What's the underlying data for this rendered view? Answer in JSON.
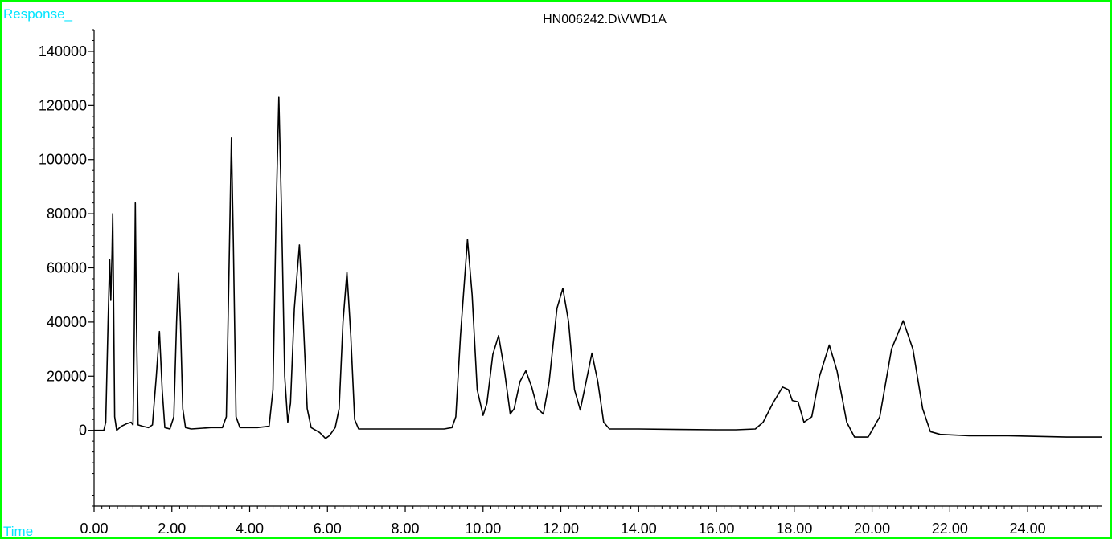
{
  "chart_data": {
    "type": "line",
    "title": "HN006242.D\\VWD1A",
    "xlabel": "Time",
    "ylabel": "Response_",
    "xlim": [
      0,
      25.9
    ],
    "ylim": [
      -28000,
      148000
    ],
    "x_ticks": [
      0,
      2,
      4,
      6,
      8,
      10,
      12,
      14,
      16,
      18,
      20,
      22,
      24
    ],
    "x_tick_labels": [
      "0.00",
      "2.00",
      "4.00",
      "6.00",
      "8.00",
      "10.00",
      "12.00",
      "14.00",
      "16.00",
      "18.00",
      "20.00",
      "22.00",
      "24.00"
    ],
    "y_ticks": [
      0,
      20000,
      40000,
      60000,
      80000,
      100000,
      120000,
      140000
    ],
    "y_tick_labels": [
      "0",
      "20000",
      "40000",
      "60000",
      "80000",
      "100000",
      "120000",
      "140000"
    ],
    "grid": false,
    "colors": {
      "trace": "#000000",
      "frame": "#00ff00",
      "axis_label": "#00e5ff"
    },
    "series": [
      {
        "points": [
          [
            0.0,
            0
          ],
          [
            0.25,
            0
          ],
          [
            0.3,
            3000
          ],
          [
            0.36,
            40000
          ],
          [
            0.4,
            63000
          ],
          [
            0.43,
            48000
          ],
          [
            0.46,
            65000
          ],
          [
            0.48,
            80000
          ],
          [
            0.5,
            50000
          ],
          [
            0.53,
            5000
          ],
          [
            0.58,
            0
          ],
          [
            0.7,
            1500
          ],
          [
            0.85,
            2500
          ],
          [
            0.95,
            3000
          ],
          [
            1.0,
            2000
          ],
          [
            1.03,
            30000
          ],
          [
            1.06,
            84000
          ],
          [
            1.09,
            40000
          ],
          [
            1.13,
            2000
          ],
          [
            1.25,
            1500
          ],
          [
            1.4,
            1000
          ],
          [
            1.5,
            2000
          ],
          [
            1.6,
            20000
          ],
          [
            1.68,
            36500
          ],
          [
            1.75,
            15000
          ],
          [
            1.82,
            1000
          ],
          [
            1.95,
            500
          ],
          [
            2.05,
            5000
          ],
          [
            2.12,
            40000
          ],
          [
            2.17,
            58000
          ],
          [
            2.22,
            40000
          ],
          [
            2.28,
            8000
          ],
          [
            2.35,
            1000
          ],
          [
            2.5,
            500
          ],
          [
            2.8,
            800
          ],
          [
            3.0,
            1000
          ],
          [
            3.3,
            1000
          ],
          [
            3.4,
            5000
          ],
          [
            3.47,
            60000
          ],
          [
            3.53,
            108000
          ],
          [
            3.58,
            70000
          ],
          [
            3.65,
            5000
          ],
          [
            3.75,
            1000
          ],
          [
            4.2,
            1000
          ],
          [
            4.5,
            1500
          ],
          [
            4.6,
            15000
          ],
          [
            4.68,
            80000
          ],
          [
            4.75,
            123000
          ],
          [
            4.82,
            80000
          ],
          [
            4.9,
            20000
          ],
          [
            4.98,
            3000
          ],
          [
            5.05,
            10000
          ],
          [
            5.15,
            45000
          ],
          [
            5.28,
            68500
          ],
          [
            5.38,
            40000
          ],
          [
            5.48,
            8000
          ],
          [
            5.58,
            1000
          ],
          [
            5.8,
            -800
          ],
          [
            5.95,
            -3000
          ],
          [
            6.05,
            -2000
          ],
          [
            6.2,
            1000
          ],
          [
            6.3,
            8000
          ],
          [
            6.4,
            40000
          ],
          [
            6.5,
            58500
          ],
          [
            6.6,
            35000
          ],
          [
            6.7,
            4000
          ],
          [
            6.8,
            500
          ],
          [
            8.0,
            500
          ],
          [
            9.0,
            500
          ],
          [
            9.2,
            1000
          ],
          [
            9.3,
            5000
          ],
          [
            9.42,
            35000
          ],
          [
            9.6,
            70500
          ],
          [
            9.72,
            50000
          ],
          [
            9.85,
            15000
          ],
          [
            10.0,
            5500
          ],
          [
            10.1,
            10000
          ],
          [
            10.25,
            28000
          ],
          [
            10.4,
            35000
          ],
          [
            10.55,
            22000
          ],
          [
            10.7,
            6000
          ],
          [
            10.8,
            8000
          ],
          [
            10.95,
            18000
          ],
          [
            11.1,
            22000
          ],
          [
            11.25,
            16000
          ],
          [
            11.4,
            8000
          ],
          [
            11.55,
            6000
          ],
          [
            11.7,
            18000
          ],
          [
            11.9,
            45000
          ],
          [
            12.05,
            52500
          ],
          [
            12.2,
            40000
          ],
          [
            12.35,
            15000
          ],
          [
            12.5,
            7500
          ],
          [
            12.65,
            18000
          ],
          [
            12.8,
            28500
          ],
          [
            12.95,
            18000
          ],
          [
            13.1,
            3000
          ],
          [
            13.25,
            500
          ],
          [
            14.0,
            500
          ],
          [
            15.0,
            300
          ],
          [
            16.0,
            200
          ],
          [
            16.5,
            200
          ],
          [
            17.0,
            500
          ],
          [
            17.2,
            3000
          ],
          [
            17.45,
            10000
          ],
          [
            17.7,
            16000
          ],
          [
            17.85,
            15000
          ],
          [
            17.95,
            11000
          ],
          [
            18.1,
            10500
          ],
          [
            18.25,
            3000
          ],
          [
            18.45,
            5000
          ],
          [
            18.65,
            20000
          ],
          [
            18.9,
            31500
          ],
          [
            19.1,
            22000
          ],
          [
            19.35,
            3000
          ],
          [
            19.55,
            -2500
          ],
          [
            19.9,
            -2500
          ],
          [
            20.2,
            5000
          ],
          [
            20.5,
            30000
          ],
          [
            20.8,
            40500
          ],
          [
            21.05,
            30000
          ],
          [
            21.3,
            8000
          ],
          [
            21.5,
            -500
          ],
          [
            21.75,
            -1500
          ],
          [
            22.5,
            -2000
          ],
          [
            23.5,
            -2000
          ],
          [
            25.0,
            -2500
          ],
          [
            25.9,
            -2500
          ]
        ]
      }
    ]
  }
}
